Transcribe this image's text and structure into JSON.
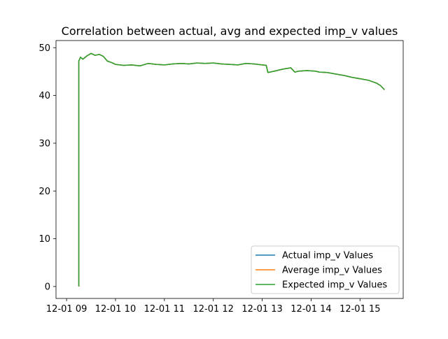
{
  "chart_data": {
    "type": "line",
    "title": "Correlation between actual, avg and expected imp_v values",
    "xlabel": "",
    "ylabel": "",
    "x_axis": "datetime",
    "xlim": [
      "12-01 08:47",
      "12-01 15:53"
    ],
    "ylim": [
      -2.5,
      51.5
    ],
    "x_ticks": [
      "12-01 09",
      "12-01 10",
      "12-01 11",
      "12-01 12",
      "12-01 13",
      "12-01 14",
      "12-01 15"
    ],
    "y_ticks": [
      0,
      10,
      20,
      30,
      40,
      50
    ],
    "grid": false,
    "legend_position": "lower-right",
    "series": [
      {
        "name": "Actual imp_v Values",
        "color": "#1f77b4",
        "x": [
          "12-01 09:15",
          "12-01 09:15",
          "12-01 09:17",
          "12-01 09:20",
          "12-01 09:25",
          "12-01 09:30",
          "12-01 09:35",
          "12-01 09:40",
          "12-01 09:45",
          "12-01 09:50",
          "12-01 09:55",
          "12-01 10:00",
          "12-01 10:10",
          "12-01 10:20",
          "12-01 10:30",
          "12-01 10:40",
          "12-01 10:50",
          "12-01 11:00",
          "12-01 11:10",
          "12-01 11:20",
          "12-01 11:30",
          "12-01 11:40",
          "12-01 11:50",
          "12-01 12:00",
          "12-01 12:10",
          "12-01 12:20",
          "12-01 12:30",
          "12-01 12:40",
          "12-01 12:50",
          "12-01 13:00",
          "12-01 13:05",
          "12-01 13:07",
          "12-01 13:15",
          "12-01 13:25",
          "12-01 13:35",
          "12-01 13:40",
          "12-01 13:45",
          "12-01 13:55",
          "12-01 14:05",
          "12-01 14:10",
          "12-01 14:20",
          "12-01 14:30",
          "12-01 14:40",
          "12-01 14:50",
          "12-01 15:00",
          "12-01 15:10",
          "12-01 15:20",
          "12-01 15:25",
          "12-01 15:30"
        ],
        "values": [
          0,
          47.2,
          48.0,
          47.6,
          48.3,
          48.8,
          48.4,
          48.6,
          48.2,
          47.2,
          46.9,
          46.5,
          46.3,
          46.4,
          46.2,
          46.7,
          46.5,
          46.4,
          46.6,
          46.7,
          46.6,
          46.8,
          46.7,
          46.8,
          46.6,
          46.5,
          46.4,
          46.7,
          46.6,
          46.4,
          46.3,
          44.8,
          45.1,
          45.5,
          45.8,
          44.9,
          45.1,
          45.2,
          45.1,
          44.9,
          44.8,
          44.5,
          44.2,
          43.8,
          43.5,
          43.2,
          42.6,
          42.1,
          41.2
        ]
      },
      {
        "name": "Average imp_v Values",
        "color": "#ff7f0e",
        "x": [
          "12-01 09:15",
          "12-01 09:15",
          "12-01 09:17",
          "12-01 09:20",
          "12-01 09:25",
          "12-01 09:30",
          "12-01 09:35",
          "12-01 09:40",
          "12-01 09:45",
          "12-01 09:50",
          "12-01 09:55",
          "12-01 10:00",
          "12-01 10:10",
          "12-01 10:20",
          "12-01 10:30",
          "12-01 10:40",
          "12-01 10:50",
          "12-01 11:00",
          "12-01 11:10",
          "12-01 11:20",
          "12-01 11:30",
          "12-01 11:40",
          "12-01 11:50",
          "12-01 12:00",
          "12-01 12:10",
          "12-01 12:20",
          "12-01 12:30",
          "12-01 12:40",
          "12-01 12:50",
          "12-01 13:00",
          "12-01 13:05",
          "12-01 13:07",
          "12-01 13:15",
          "12-01 13:25",
          "12-01 13:35",
          "12-01 13:40",
          "12-01 13:45",
          "12-01 13:55",
          "12-01 14:05",
          "12-01 14:10",
          "12-01 14:20",
          "12-01 14:30",
          "12-01 14:40",
          "12-01 14:50",
          "12-01 15:00",
          "12-01 15:10",
          "12-01 15:20",
          "12-01 15:25",
          "12-01 15:30"
        ],
        "values": [
          0,
          47.2,
          48.0,
          47.6,
          48.3,
          48.8,
          48.4,
          48.6,
          48.2,
          47.2,
          46.9,
          46.5,
          46.3,
          46.4,
          46.2,
          46.7,
          46.5,
          46.4,
          46.6,
          46.7,
          46.6,
          46.8,
          46.7,
          46.8,
          46.6,
          46.5,
          46.4,
          46.7,
          46.6,
          46.4,
          46.3,
          44.8,
          45.1,
          45.5,
          45.8,
          44.9,
          45.1,
          45.2,
          45.1,
          44.9,
          44.8,
          44.5,
          44.2,
          43.8,
          43.5,
          43.2,
          42.6,
          42.1,
          41.2
        ]
      },
      {
        "name": "Expected imp_v Values",
        "color": "#2ca02c",
        "x": [
          "12-01 09:15",
          "12-01 09:15",
          "12-01 09:17",
          "12-01 09:20",
          "12-01 09:25",
          "12-01 09:30",
          "12-01 09:35",
          "12-01 09:40",
          "12-01 09:45",
          "12-01 09:50",
          "12-01 09:55",
          "12-01 10:00",
          "12-01 10:10",
          "12-01 10:20",
          "12-01 10:30",
          "12-01 10:40",
          "12-01 10:50",
          "12-01 11:00",
          "12-01 11:10",
          "12-01 11:20",
          "12-01 11:30",
          "12-01 11:40",
          "12-01 11:50",
          "12-01 12:00",
          "12-01 12:10",
          "12-01 12:20",
          "12-01 12:30",
          "12-01 12:40",
          "12-01 12:50",
          "12-01 13:00",
          "12-01 13:05",
          "12-01 13:07",
          "12-01 13:15",
          "12-01 13:25",
          "12-01 13:35",
          "12-01 13:40",
          "12-01 13:45",
          "12-01 13:55",
          "12-01 14:05",
          "12-01 14:10",
          "12-01 14:20",
          "12-01 14:30",
          "12-01 14:40",
          "12-01 14:50",
          "12-01 15:00",
          "12-01 15:10",
          "12-01 15:20",
          "12-01 15:25",
          "12-01 15:30"
        ],
        "values": [
          0,
          47.2,
          48.0,
          47.6,
          48.3,
          48.8,
          48.4,
          48.6,
          48.2,
          47.2,
          46.9,
          46.5,
          46.3,
          46.4,
          46.2,
          46.7,
          46.5,
          46.4,
          46.6,
          46.7,
          46.6,
          46.8,
          46.7,
          46.8,
          46.6,
          46.5,
          46.4,
          46.7,
          46.6,
          46.4,
          46.3,
          44.8,
          45.1,
          45.5,
          45.8,
          44.9,
          45.1,
          45.2,
          45.1,
          44.9,
          44.8,
          44.5,
          44.2,
          43.8,
          43.5,
          43.2,
          42.6,
          42.1,
          41.2
        ]
      }
    ]
  }
}
